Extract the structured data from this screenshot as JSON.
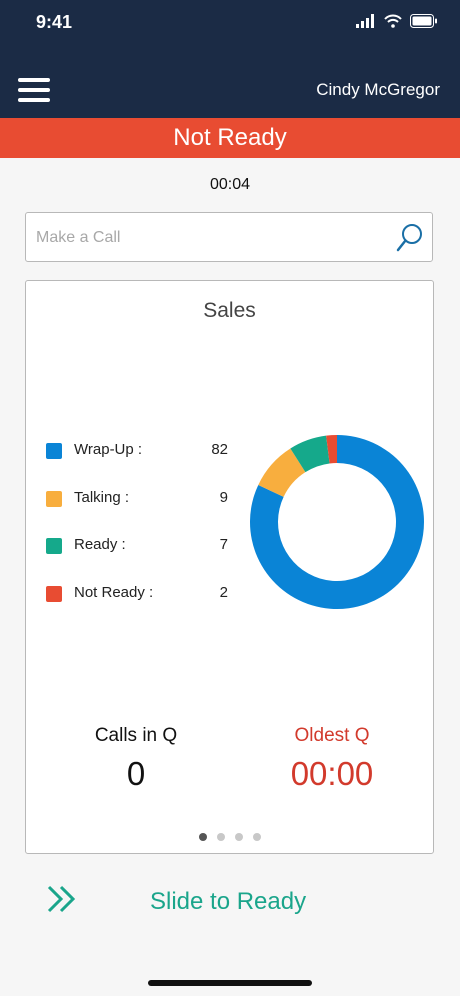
{
  "status_bar": {
    "time": "9:41"
  },
  "header": {
    "user_name": "Cindy McGregor"
  },
  "state": {
    "label": "Not Ready",
    "timer": "00:04"
  },
  "search": {
    "placeholder": "Make a Call"
  },
  "queue_card": {
    "title": "Sales",
    "legend": [
      {
        "label": "Wrap-Up :",
        "value": "82",
        "color": "#0a84d6"
      },
      {
        "label": "Talking :",
        "value": "9",
        "color": "#f8ae3e"
      },
      {
        "label": "Ready :",
        "value": "7",
        "color": "#15a98b"
      },
      {
        "label": "Not Ready :",
        "value": "2",
        "color": "#e84c32"
      }
    ],
    "calls_in_q": {
      "label": "Calls in Q",
      "value": "0"
    },
    "oldest_q": {
      "label": "Oldest Q",
      "value": "00:00"
    },
    "page_count": 4,
    "active_page": 1
  },
  "chart_data": {
    "type": "pie",
    "donut": true,
    "categories": [
      "Wrap-Up",
      "Talking",
      "Ready",
      "Not Ready"
    ],
    "values": [
      82,
      9,
      7,
      2
    ],
    "colors": [
      "#0a84d6",
      "#f8ae3e",
      "#15a98b",
      "#e84c32"
    ],
    "title": "Sales"
  },
  "footer": {
    "slide_label": "Slide to Ready"
  },
  "colors": {
    "navy": "#1b2b45",
    "banner_red": "#e84c32",
    "oldest_red": "#d23a2c",
    "accent_green": "#1aa58b"
  },
  "icons": {
    "menu": "hamburger-menu-icon",
    "search": "search-icon",
    "slide": "double-chevron-right-icon"
  }
}
